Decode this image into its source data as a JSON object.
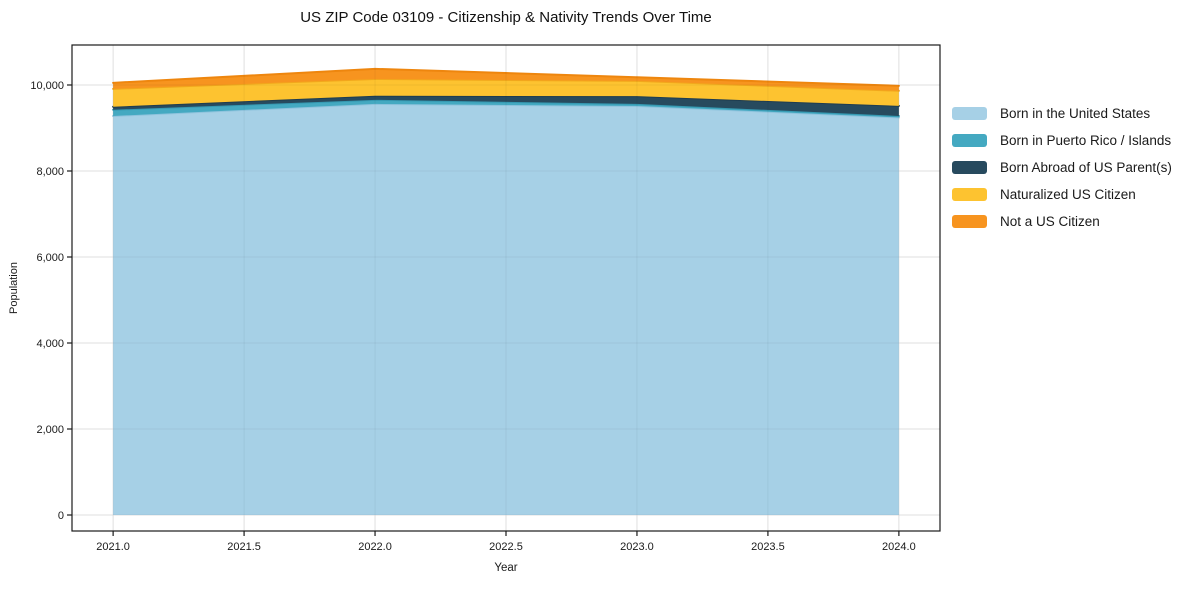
{
  "chart_data": {
    "type": "area",
    "stacked": true,
    "title": "US ZIP Code 03109 - Citizenship & Nativity Trends Over Time",
    "xlabel": "Year",
    "ylabel": "Population",
    "x": [
      2021,
      2022,
      2023,
      2024
    ],
    "series": [
      {
        "name": "Born in the United States",
        "color": "#A6D0E6",
        "line_color": "#8FC3DD",
        "values": [
          9280,
          9560,
          9510,
          9245
        ]
      },
      {
        "name": "Born in Puerto Rico / Islands",
        "color": "#44A9C1",
        "line_color": "#3598B1",
        "values": [
          145,
          95,
          50,
          35
        ]
      },
      {
        "name": "Born Abroad of US Parent(s)",
        "color": "#274A5E",
        "line_color": "#1F3D50",
        "values": [
          70,
          95,
          180,
          235
        ]
      },
      {
        "name": "Naturalized US Citizen",
        "color": "#FDC330",
        "line_color": "#F2A81C",
        "values": [
          415,
          390,
          355,
          350
        ]
      },
      {
        "name": "Not a US Citizen",
        "color": "#F7941F",
        "line_color": "#EE860E",
        "values": [
          140,
          235,
          85,
          115
        ]
      }
    ],
    "stack_totals": [
      10050,
      10375,
      10180,
      9980
    ],
    "xlim": [
      2020.843,
      2024.157
    ],
    "ylim": [
      -372,
      10930
    ],
    "xticks": {
      "values": [
        2021,
        2021.5,
        2022,
        2022.5,
        2023,
        2023.5,
        2024
      ],
      "labels": [
        "2021.0",
        "2021.5",
        "2022.0",
        "2022.5",
        "2023.0",
        "2023.5",
        "2024.0"
      ]
    },
    "yticks": {
      "values": [
        0,
        2000,
        4000,
        6000,
        8000,
        10000
      ],
      "labels": [
        "0",
        "2,000",
        "4,000",
        "6,000",
        "8,000",
        "10,000"
      ]
    },
    "grid": true,
    "legend_position": "right-outside",
    "colors": {
      "grid": "#EBEBEB",
      "spine": "#1a1a1a",
      "text": "#1a1a1a",
      "background": "#ffffff"
    }
  }
}
